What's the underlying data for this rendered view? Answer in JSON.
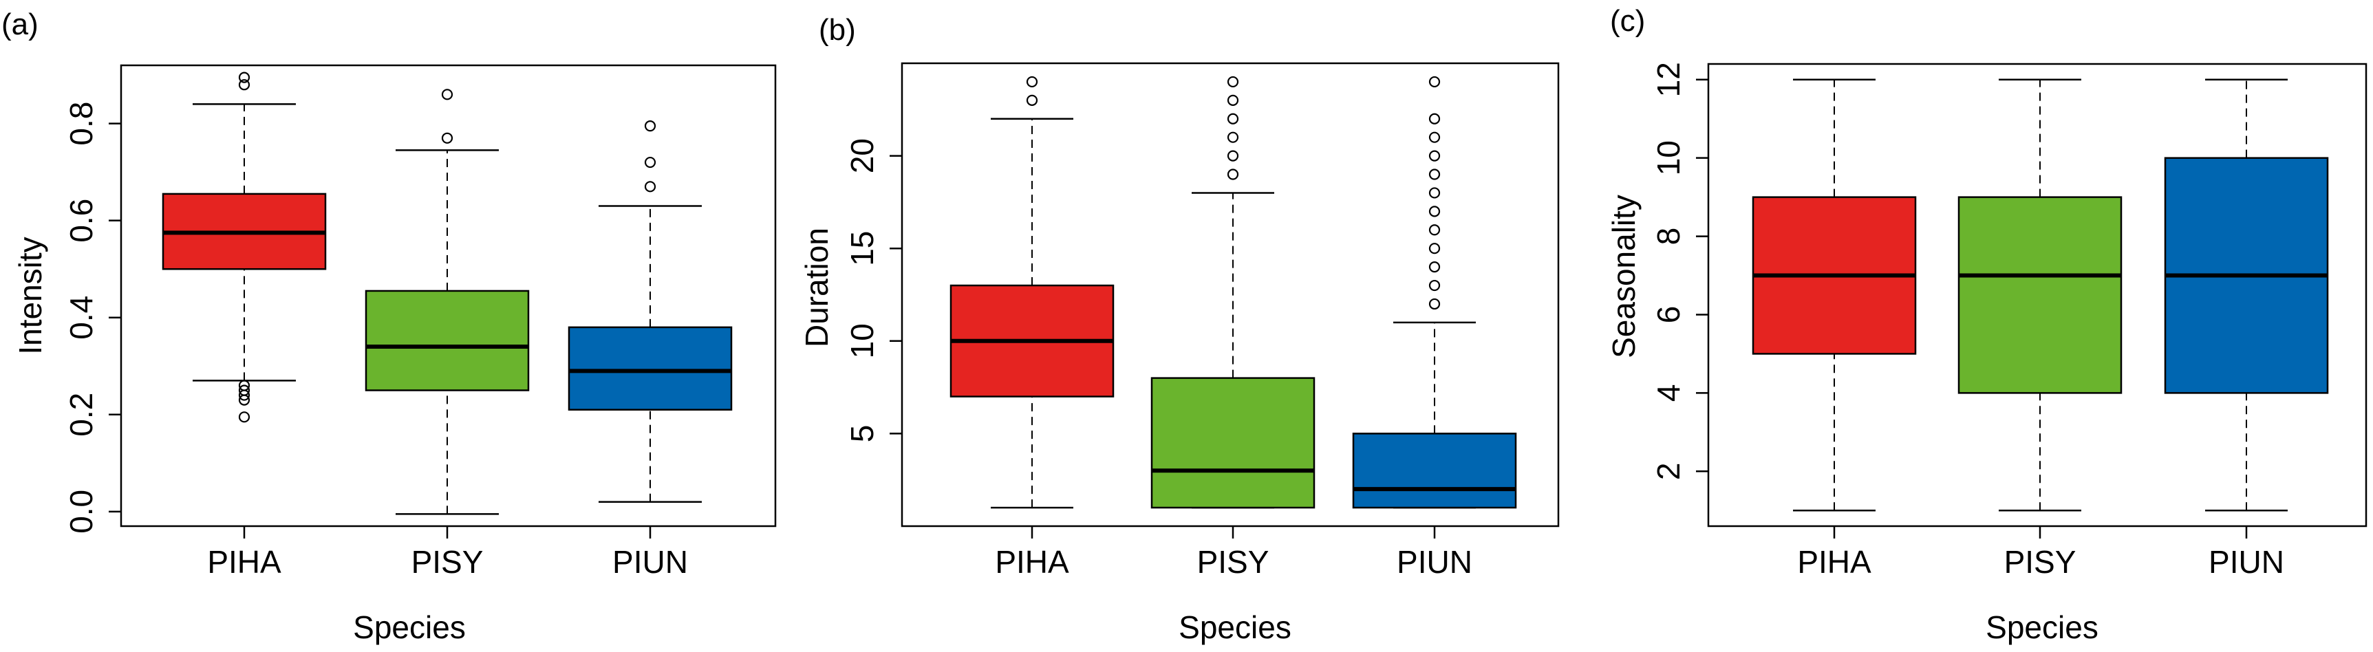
{
  "colors": {
    "PIHA": "#e52421",
    "PISY": "#6ab42d",
    "PIUN": "#0066b1"
  },
  "chart_data": [
    {
      "type": "boxplot",
      "panel_label": "(a)",
      "xlabel": "Species",
      "ylabel": "Intensity",
      "categories": [
        "PIHA",
        "PISY",
        "PIUN"
      ],
      "ylim": [
        -0.03,
        0.92
      ],
      "yticks": [
        0.0,
        0.2,
        0.4,
        0.6,
        0.8
      ],
      "ytick_labels": [
        "0.0",
        "0.2",
        "0.4",
        "0.6",
        "0.8"
      ],
      "boxes": [
        {
          "name": "PIHA",
          "whisker_low": 0.27,
          "q1": 0.5,
          "median": 0.575,
          "q3": 0.655,
          "whisker_high": 0.84,
          "outliers": [
            0.895,
            0.88,
            0.26,
            0.25,
            0.24,
            0.23,
            0.195
          ]
        },
        {
          "name": "PISY",
          "whisker_low": -0.005,
          "q1": 0.25,
          "median": 0.34,
          "q3": 0.455,
          "whisker_high": 0.745,
          "outliers": [
            0.86,
            0.77
          ]
        },
        {
          "name": "PIUN",
          "whisker_low": 0.02,
          "q1": 0.21,
          "median": 0.29,
          "q3": 0.38,
          "whisker_high": 0.63,
          "outliers": [
            0.795,
            0.72,
            0.67
          ]
        }
      ]
    },
    {
      "type": "boxplot",
      "panel_label": "(b)",
      "xlabel": "Species",
      "ylabel": "Duration",
      "categories": [
        "PIHA",
        "PISY",
        "PIUN"
      ],
      "ylim": [
        0,
        25
      ],
      "yticks": [
        5,
        10,
        15,
        20
      ],
      "ytick_labels": [
        "5",
        "10",
        "15",
        "20"
      ],
      "boxes": [
        {
          "name": "PIHA",
          "whisker_low": 1,
          "q1": 7,
          "median": 10,
          "q3": 13,
          "whisker_high": 22,
          "outliers": [
            23,
            24
          ]
        },
        {
          "name": "PISY",
          "whisker_low": 1,
          "q1": 1,
          "median": 3,
          "q3": 8,
          "whisker_high": 18,
          "outliers": [
            19,
            20,
            21,
            22,
            23,
            24
          ]
        },
        {
          "name": "PIUN",
          "whisker_low": 1,
          "q1": 1,
          "median": 2,
          "q3": 5,
          "whisker_high": 11,
          "outliers": [
            12,
            13,
            14,
            15,
            16,
            17,
            18,
            19,
            20,
            21,
            22,
            24
          ]
        }
      ]
    },
    {
      "type": "boxplot",
      "panel_label": "(c)",
      "xlabel": "Species",
      "ylabel": "Seasonality",
      "categories": [
        "PIHA",
        "PISY",
        "PIUN"
      ],
      "ylim": [
        0.6,
        12.4
      ],
      "yticks": [
        2,
        4,
        6,
        8,
        10,
        12
      ],
      "ytick_labels": [
        "2",
        "4",
        "6",
        "8",
        "10",
        "12"
      ],
      "boxes": [
        {
          "name": "PIHA",
          "whisker_low": 1,
          "q1": 5,
          "median": 7,
          "q3": 9,
          "whisker_high": 12,
          "outliers": []
        },
        {
          "name": "PISY",
          "whisker_low": 1,
          "q1": 4,
          "median": 7,
          "q3": 9,
          "whisker_high": 12,
          "outliers": []
        },
        {
          "name": "PIUN",
          "whisker_low": 1,
          "q1": 4,
          "median": 7,
          "q3": 10,
          "whisker_high": 12,
          "outliers": []
        }
      ]
    }
  ]
}
